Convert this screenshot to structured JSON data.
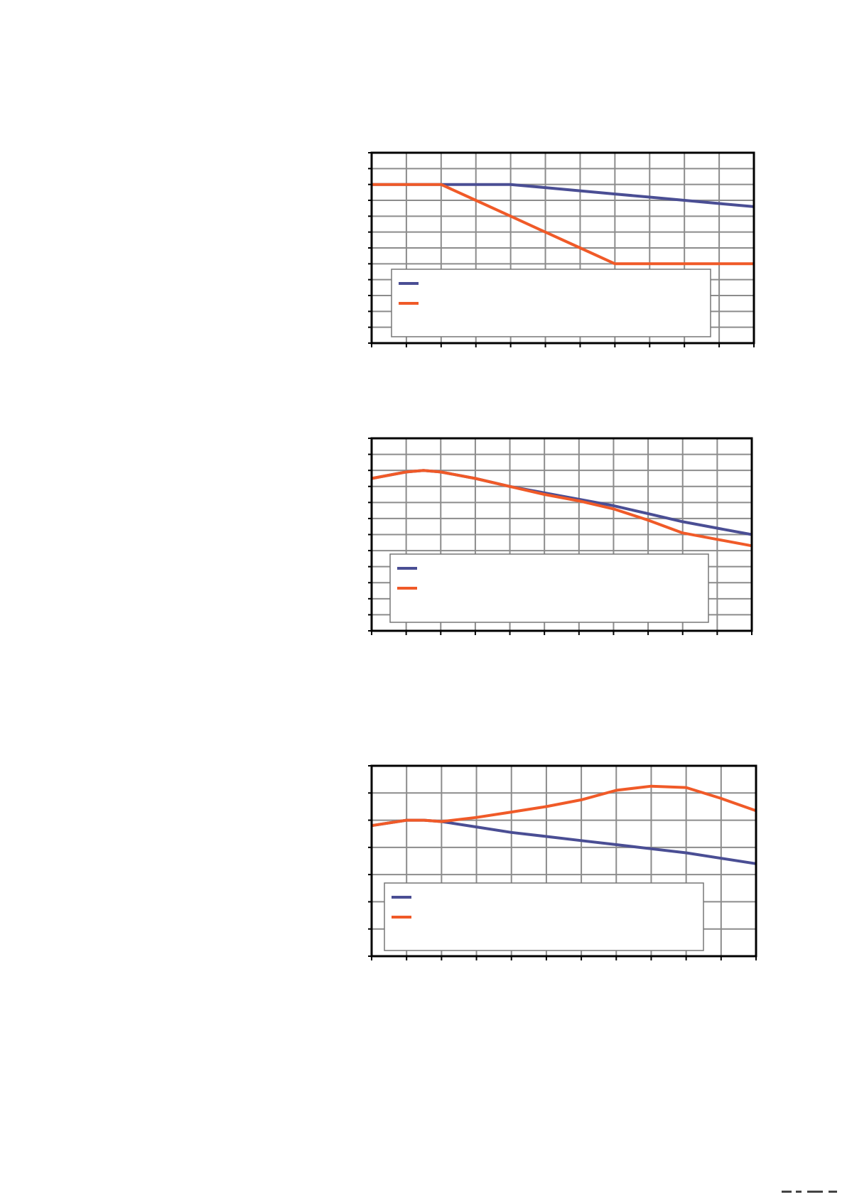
{
  "chart_data": [
    {
      "type": "line",
      "title": "",
      "xlabel": "",
      "ylabel": "",
      "grid": true,
      "legend": "bottom-left",
      "x": [
        0,
        1,
        2,
        3,
        4,
        5,
        6,
        7,
        8,
        9,
        10,
        11
      ],
      "xlim": [
        0,
        11
      ],
      "ylim": [
        0,
        12
      ],
      "series": [
        {
          "color": "#4a4e94",
          "values": [
            10,
            10,
            10,
            10,
            10,
            9.8,
            9.6,
            9.4,
            9.2,
            9.0,
            8.8,
            8.6
          ]
        },
        {
          "color": "#f05a28",
          "values": [
            10,
            10,
            10,
            9.0,
            8.0,
            7.0,
            6.0,
            5.0,
            5.0,
            5.0,
            5.0,
            5.0
          ]
        }
      ]
    },
    {
      "type": "line",
      "title": "",
      "xlabel": "",
      "ylabel": "",
      "grid": true,
      "legend": "bottom-left",
      "x": [
        0,
        1,
        1.5,
        2,
        3,
        4,
        5,
        6,
        7,
        8,
        9,
        10,
        11
      ],
      "xlim": [
        0,
        11
      ],
      "ylim": [
        0,
        12
      ],
      "series": [
        {
          "color": "#4a4e94",
          "values": [
            9.5,
            9.9,
            10.0,
            9.9,
            9.5,
            9.0,
            8.6,
            8.2,
            7.8,
            7.3,
            6.8,
            6.4,
            6.0
          ]
        },
        {
          "color": "#f05a28",
          "values": [
            9.5,
            9.9,
            10.0,
            9.9,
            9.5,
            9.0,
            8.5,
            8.1,
            7.6,
            6.9,
            6.1,
            5.7,
            5.3
          ]
        }
      ]
    },
    {
      "type": "line",
      "title": "",
      "xlabel": "",
      "ylabel": "",
      "grid": true,
      "legend": "bottom-left",
      "x": [
        0,
        1,
        1.5,
        2,
        3,
        4,
        5,
        6,
        7,
        8,
        9,
        10,
        11
      ],
      "xlim": [
        0,
        11
      ],
      "ylim": [
        0,
        7
      ],
      "series": [
        {
          "color": "#4a4e94",
          "values": [
            4.8,
            5.0,
            5.0,
            4.95,
            4.75,
            4.55,
            4.4,
            4.25,
            4.1,
            3.95,
            3.8,
            3.6,
            3.4
          ]
        },
        {
          "color": "#f05a28",
          "values": [
            4.8,
            5.0,
            5.0,
            4.95,
            5.1,
            5.3,
            5.5,
            5.75,
            6.1,
            6.25,
            6.2,
            5.8,
            5.35
          ]
        }
      ]
    }
  ]
}
